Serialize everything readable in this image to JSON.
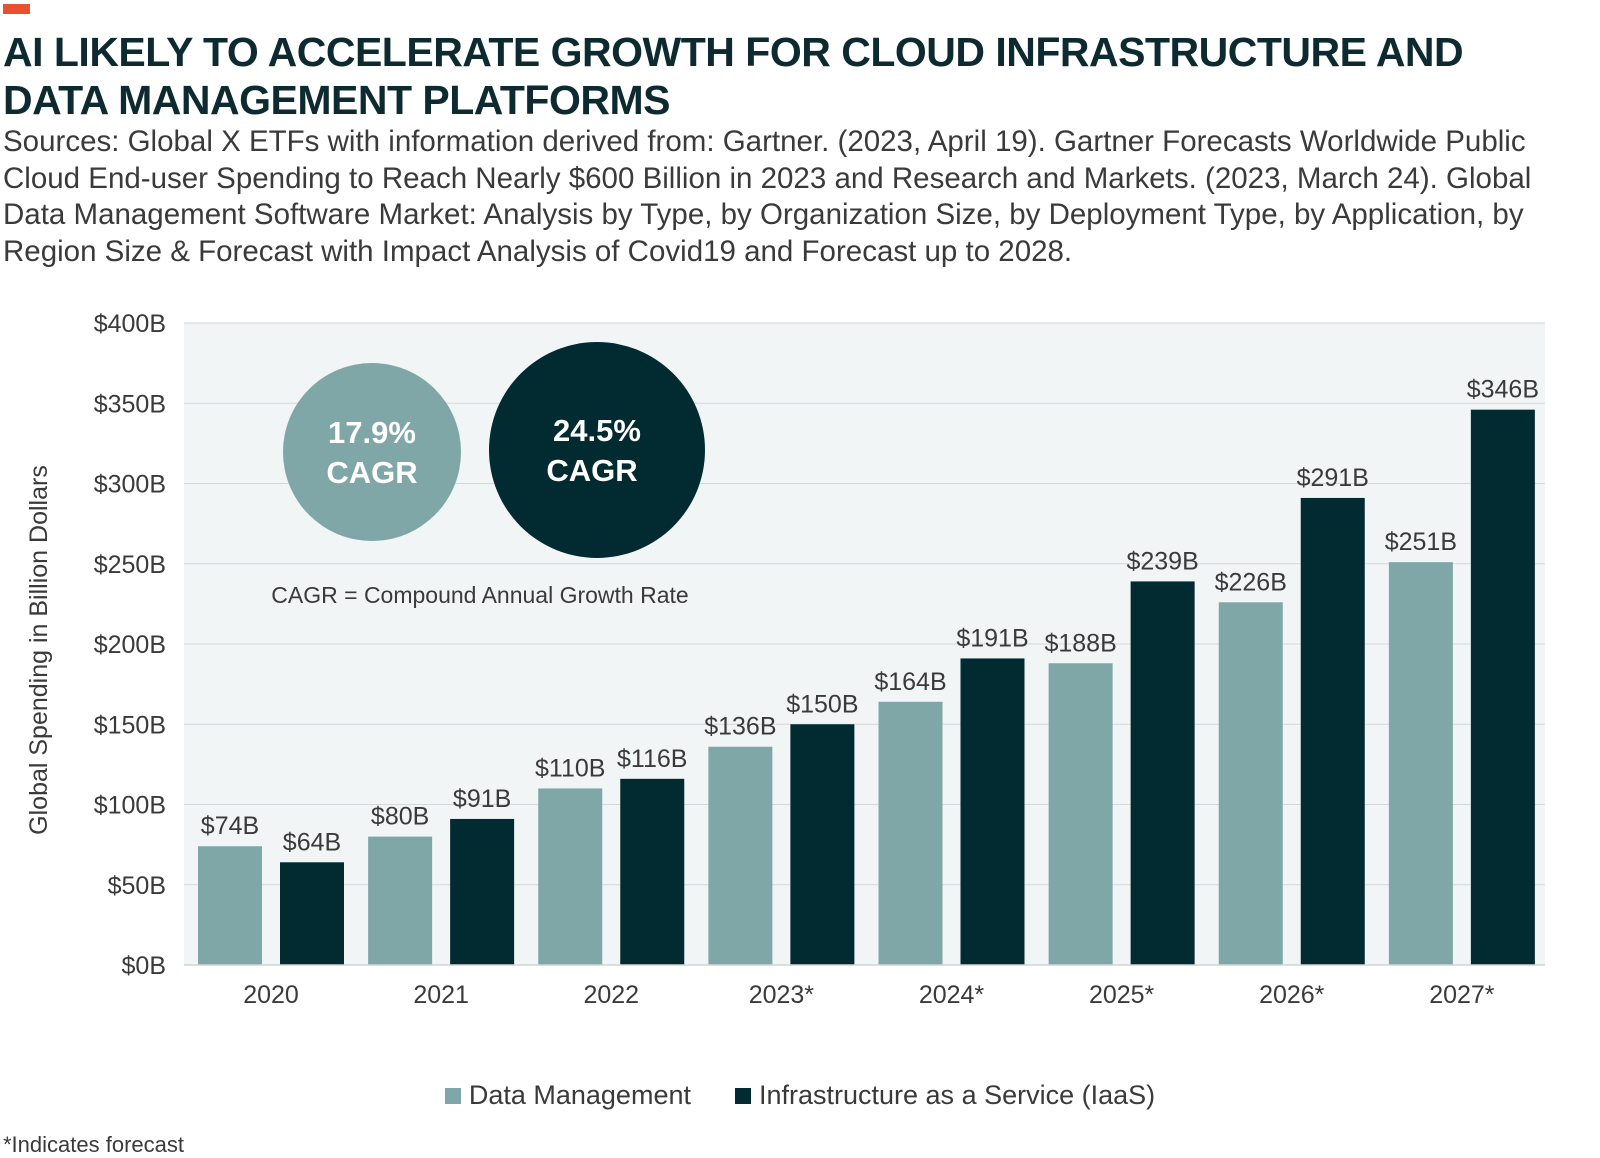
{
  "title": "AI LIKELY TO ACCELERATE GROWTH FOR CLOUD INFRASTRUCTURE AND DATA MANAGEMENT PLATFORMS",
  "sources": "Sources: Global X ETFs with information derived from: Gartner. (2023, April 19). Gartner Forecasts Worldwide Public Cloud End-user Spending to Reach Nearly $600 Billion in 2023 and Research and Markets. (2023, March 24). Global Data Management Software Market: Analysis by Type, by Organization Size, by Deployment Type, by Application, by Region Size & Forecast with Impact Analysis of Covid19 and Forecast up to 2028.",
  "footnote": "*Indicates forecast",
  "colors": {
    "accent": "#e8512f",
    "title": "#0d2a30",
    "data_management": "#7fa7a7",
    "iaas": "#022a31",
    "plot_bg": "#f1f5f6"
  },
  "chart_data": {
    "type": "bar",
    "categories": [
      "2020",
      "2021",
      "2022",
      "2023*",
      "2024*",
      "2025*",
      "2026*",
      "2027*"
    ],
    "series": [
      {
        "name": "Data Management",
        "values": [
          74,
          80,
          110,
          136,
          164,
          188,
          226,
          251
        ],
        "labels": [
          "$74B",
          "$80B",
          "$110B",
          "$136B",
          "$164B",
          "$188B",
          "$226B",
          "$251B"
        ]
      },
      {
        "name": "Infrastructure as a Service (IaaS)",
        "values": [
          64,
          91,
          116,
          150,
          191,
          239,
          291,
          346
        ],
        "labels": [
          "$64B",
          "$91B",
          "$116B",
          "$150B",
          "$191B",
          "$239B",
          "$291B",
          "$346B"
        ]
      }
    ],
    "ylabel": "Global Spending in Billion Dollars",
    "ylim": [
      0,
      400
    ],
    "yticks": [
      0,
      50,
      100,
      150,
      200,
      250,
      300,
      350,
      400
    ],
    "ytick_labels": [
      "$0B",
      "$50B",
      "$100B",
      "$150B",
      "$200B",
      "$250B",
      "$300B",
      "$350B",
      "$400B"
    ],
    "grid": true,
    "legend": "bottom",
    "annotations": {
      "cagr_data_management": {
        "value": "17.9%",
        "label": "CAGR"
      },
      "cagr_iaas": {
        "value": "24.5%",
        "label": "CAGR"
      },
      "note": "CAGR = Compound Annual Growth Rate"
    }
  }
}
